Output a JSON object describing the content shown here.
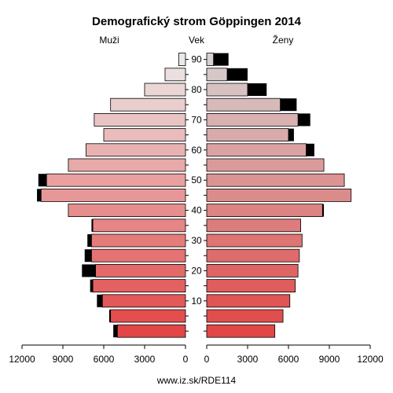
{
  "chart_data": {
    "type": "bar",
    "orientation": "horizontal-population-pyramid",
    "title": "Demografický strom Göppingen 2014",
    "left_label": "Muži",
    "center_label": "Vek",
    "right_label": "Ženy",
    "source": "www.iz.sk/RDE114",
    "age_ticks": [
      10,
      20,
      30,
      40,
      50,
      60,
      70,
      80,
      90
    ],
    "x_ticks": [
      12000,
      9000,
      6000,
      3000,
      0
    ],
    "x_tick_labels": [
      "12000",
      "9000",
      "6000",
      "3000",
      "0"
    ],
    "xlim": [
      0,
      12000
    ],
    "age_groups": [
      0,
      5,
      10,
      15,
      20,
      25,
      30,
      35,
      40,
      45,
      50,
      55,
      60,
      65,
      70,
      75,
      80,
      85,
      90
    ],
    "series": [
      {
        "name": "Muži",
        "values": [
          5000,
          5500,
          6100,
          6800,
          6600,
          6900,
          6900,
          6800,
          8600,
          10600,
          10200,
          8600,
          7300,
          6000,
          6700,
          5500,
          3000,
          1500,
          500
        ],
        "excess": [
          300,
          100,
          400,
          200,
          1000,
          500,
          300,
          100,
          0,
          300,
          600,
          0,
          0,
          0,
          0,
          0,
          0,
          0,
          0
        ]
      },
      {
        "name": "Ženy",
        "values": [
          5000,
          5600,
          6100,
          6500,
          6700,
          6800,
          7000,
          6900,
          8500,
          10600,
          10100,
          8600,
          7300,
          6000,
          6700,
          5400,
          3000,
          1500,
          500
        ],
        "excess": [
          0,
          0,
          0,
          0,
          0,
          0,
          0,
          0,
          100,
          0,
          0,
          0,
          600,
          400,
          900,
          1200,
          1400,
          1500,
          1100
        ]
      }
    ]
  }
}
